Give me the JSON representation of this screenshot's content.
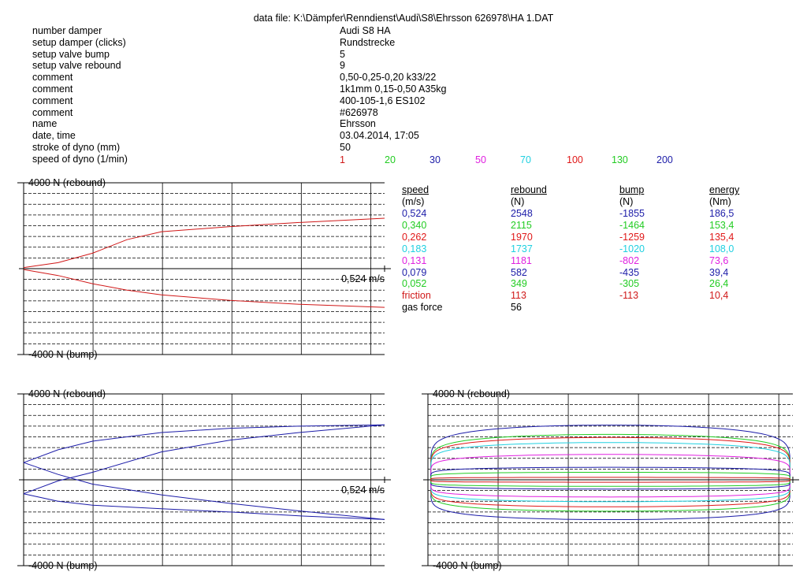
{
  "header": {
    "file_label": "data file:",
    "file_path": "K:\\Dämpfer\\Renndienst\\Audi\\S8\\Ehrsson 626978\\HA 1.DAT"
  },
  "metadata": [
    {
      "label": "number damper",
      "value": "Audi S8 HA"
    },
    {
      "label": "setup damper (clicks)",
      "value": "Rundstrecke"
    },
    {
      "label": "setup valve bump",
      "value": "5"
    },
    {
      "label": "setup valve rebound",
      "value": "9"
    },
    {
      "label": "comment",
      "value": "0,50-0,25-0,20    k33/22"
    },
    {
      "label": "comment",
      "value": "1k1mm   0,15-0,50   A35kg"
    },
    {
      "label": "comment",
      "value": "400-105-1,6 ES102"
    },
    {
      "label": "comment",
      "value": "#626978"
    },
    {
      "label": "name",
      "value": "Ehrsson"
    },
    {
      "label": "date, time",
      "value": "03.04.2014,  17:05"
    },
    {
      "label": "stroke of dyno (mm)",
      "value": "50"
    },
    {
      "label": "speed of dyno (1/min)",
      "value": ""
    }
  ],
  "dyno_speeds": [
    {
      "value": "1",
      "color": "#d01818"
    },
    {
      "value": "20",
      "color": "#22cc22"
    },
    {
      "value": "30",
      "color": "#1c1ca8"
    },
    {
      "value": "50",
      "color": "#e020e0"
    },
    {
      "value": "70",
      "color": "#20d0e0"
    },
    {
      "value": "100",
      "color": "#e01818"
    },
    {
      "value": "130",
      "color": "#22cc22"
    },
    {
      "value": "200",
      "color": "#1c1ca8"
    }
  ],
  "results_table": {
    "headers": [
      "speed",
      "rebound",
      "bump",
      "energy"
    ],
    "units": [
      "(m/s)",
      "(N)",
      "(N)",
      "(Nm)"
    ],
    "rows": [
      {
        "speed": "0,524",
        "rebound": "2548",
        "bump": "-1855",
        "energy": "186,5",
        "color": "#1c1ca8"
      },
      {
        "speed": "0,340",
        "rebound": "2115",
        "bump": "-1464",
        "energy": "153,4",
        "color": "#22cc22"
      },
      {
        "speed": "0,262",
        "rebound": "1970",
        "bump": "-1259",
        "energy": "135,4",
        "color": "#e01818"
      },
      {
        "speed": "0,183",
        "rebound": "1737",
        "bump": "-1020",
        "energy": "108,0",
        "color": "#20d0e0"
      },
      {
        "speed": "0,131",
        "rebound": "1181",
        "bump": "-802",
        "energy": "73,6",
        "color": "#e020e0"
      },
      {
        "speed": "0,079",
        "rebound": "582",
        "bump": "-435",
        "energy": "39,4",
        "color": "#1c1ca8"
      },
      {
        "speed": "0,052",
        "rebound": "349",
        "bump": "-305",
        "energy": "26,4",
        "color": "#22cc22"
      },
      {
        "speed": "friction",
        "rebound": "113",
        "bump": "-113",
        "energy": "10,4",
        "color": "#d01818"
      },
      {
        "speed": "gas force",
        "rebound": "56",
        "bump": "",
        "energy": "",
        "color": "#000000"
      }
    ]
  },
  "chart_data": [
    {
      "type": "line",
      "name": "force-velocity-low",
      "ylabel_top": "4000 N (rebound)",
      "ylabel_bottom": "-4000 N (bump)",
      "x_end_label": "0,524 m/s",
      "xlim": [
        0,
        0.524
      ],
      "ylim": [
        -4000,
        4000
      ],
      "grid": true,
      "series": [
        {
          "color": "#d01818",
          "x": [
            0,
            0.05,
            0.1,
            0.15,
            0.2,
            0.3,
            0.4,
            0.524
          ],
          "y": [
            50,
            280,
            720,
            1350,
            1720,
            1960,
            2150,
            2350
          ]
        },
        {
          "color": "#d01818",
          "x": [
            0,
            0.05,
            0.1,
            0.15,
            0.2,
            0.3,
            0.4,
            0.524
          ],
          "y": [
            -40,
            -320,
            -700,
            -1000,
            -1220,
            -1480,
            -1660,
            -1800
          ]
        }
      ]
    },
    {
      "type": "line",
      "name": "force-velocity-high",
      "ylabel_top": "4000 N (rebound)",
      "ylabel_bottom": "-4000 N (bump)",
      "x_end_label": "0,524 m/s",
      "xlim": [
        0,
        0.524
      ],
      "ylim": [
        -4000,
        4000
      ],
      "grid": true,
      "series": [
        {
          "color": "#1c1ca8",
          "x": [
            0,
            0.05,
            0.1,
            0.2,
            0.3,
            0.4,
            0.524
          ],
          "y": [
            800,
            1400,
            1800,
            2200,
            2400,
            2500,
            2560
          ]
        },
        {
          "color": "#1c1ca8",
          "x": [
            0,
            0.05,
            0.1,
            0.2,
            0.3,
            0.4,
            0.524
          ],
          "y": [
            -650,
            -50,
            350,
            1300,
            1850,
            2200,
            2560
          ]
        },
        {
          "color": "#1c1ca8",
          "x": [
            0,
            0.05,
            0.1,
            0.2,
            0.3,
            0.4,
            0.524
          ],
          "y": [
            800,
            250,
            -200,
            -700,
            -1100,
            -1450,
            -1850
          ]
        },
        {
          "color": "#1c1ca8",
          "x": [
            0,
            0.05,
            0.1,
            0.2,
            0.3,
            0.4,
            0.524
          ],
          "y": [
            -650,
            -1000,
            -1180,
            -1350,
            -1500,
            -1680,
            -1850
          ]
        }
      ]
    },
    {
      "type": "line",
      "name": "force-displacement",
      "ylabel_top": "4000 N (rebound)",
      "ylabel_bottom": "-4000 N (bump)",
      "xlim": [
        -25,
        25
      ],
      "ylim": [
        -4000,
        4000
      ],
      "grid": true,
      "loops": [
        {
          "color": "#1c1ca8",
          "rebound": 2548,
          "bump": -1855
        },
        {
          "color": "#22cc22",
          "rebound": 2115,
          "bump": -1464
        },
        {
          "color": "#e01818",
          "rebound": 1970,
          "bump": -1259
        },
        {
          "color": "#20d0e0",
          "rebound": 1737,
          "bump": -1020
        },
        {
          "color": "#e020e0",
          "rebound": 1181,
          "bump": -802
        },
        {
          "color": "#1c1ca8",
          "rebound": 582,
          "bump": -435
        },
        {
          "color": "#22cc22",
          "rebound": 349,
          "bump": -305
        },
        {
          "color": "#d01818",
          "rebound": 113,
          "bump": -113
        }
      ]
    }
  ]
}
